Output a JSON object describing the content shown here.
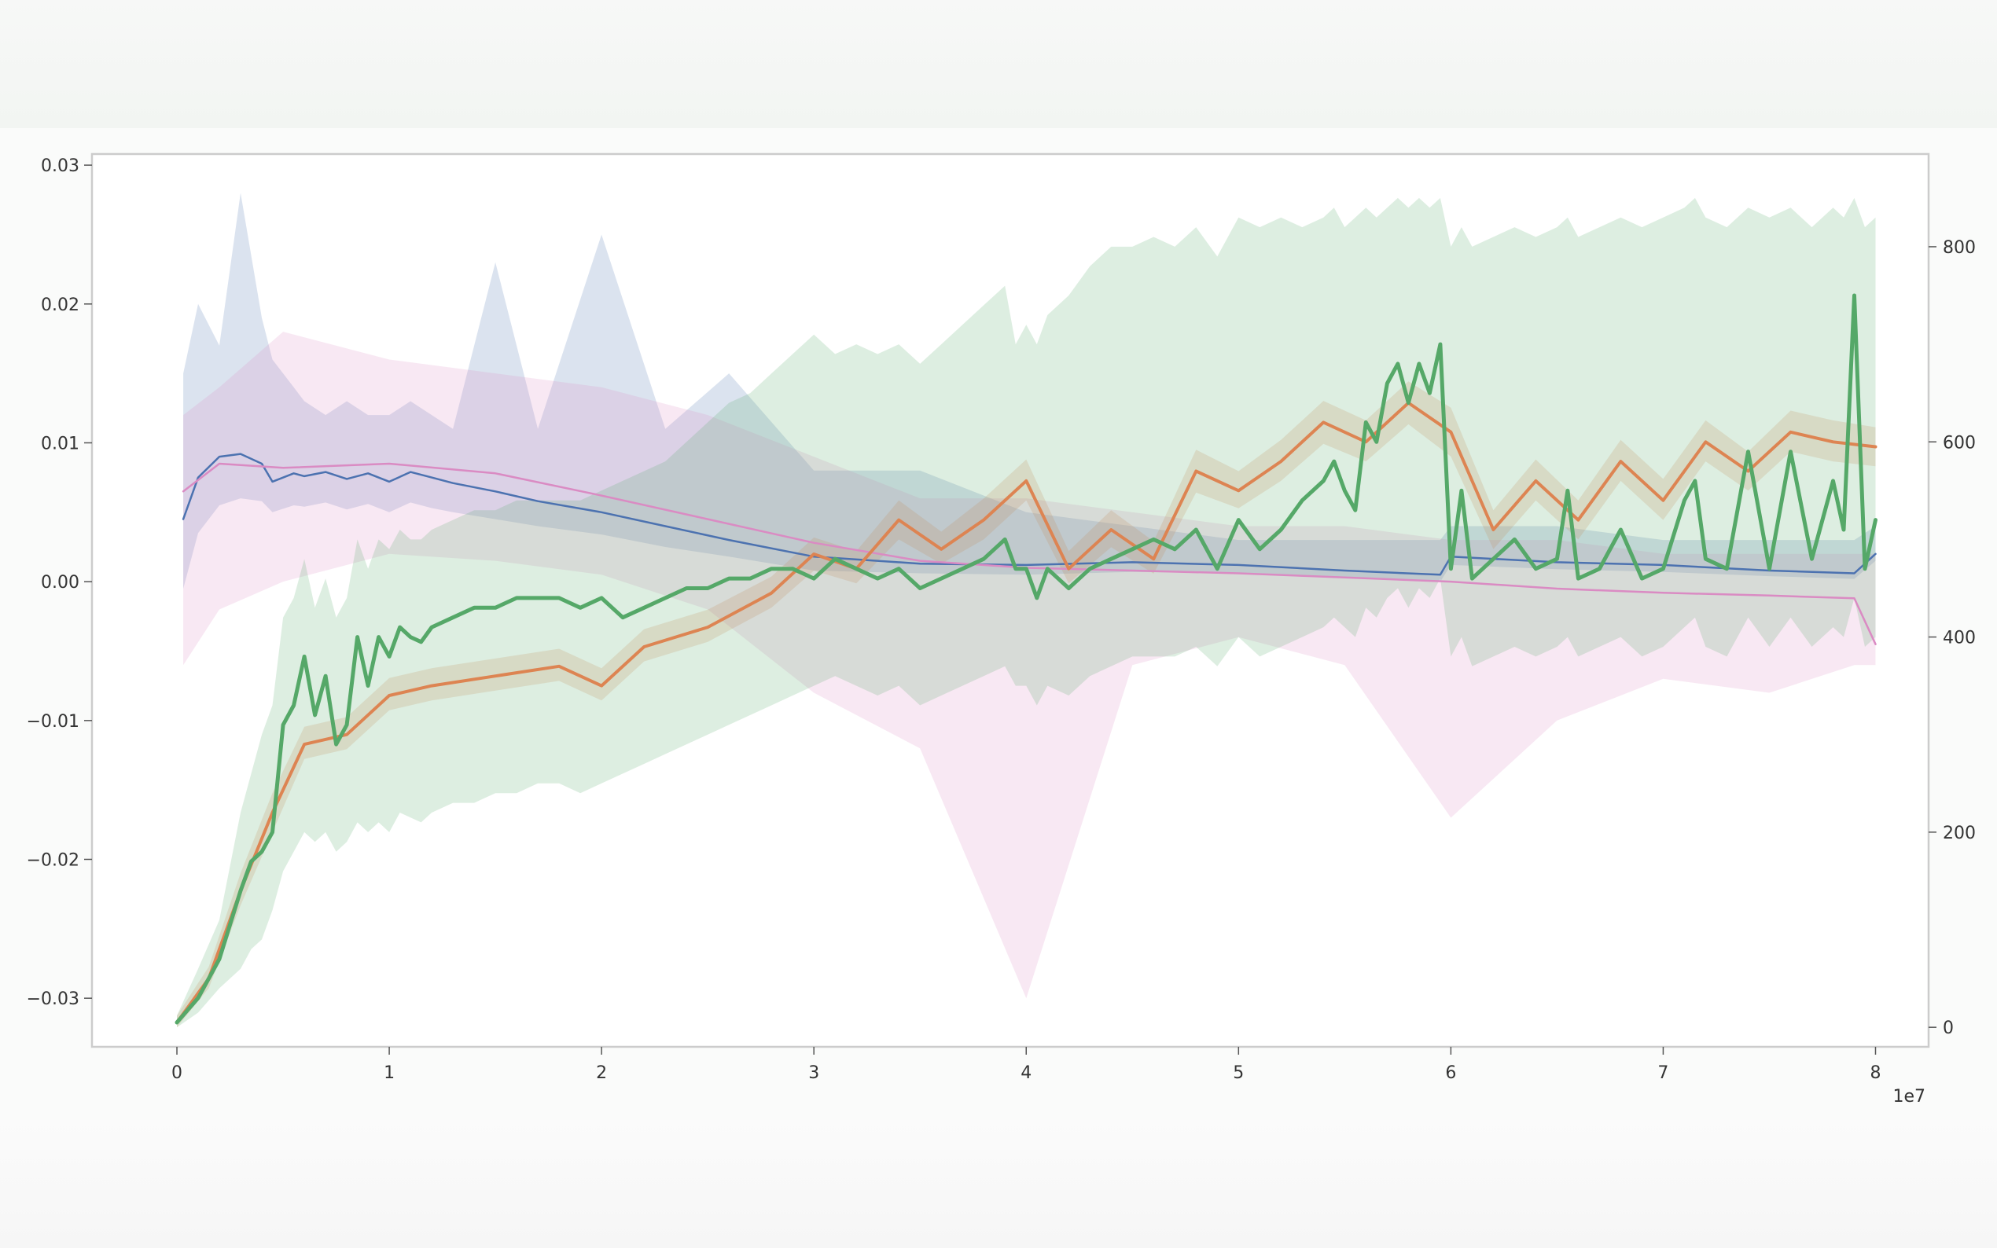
{
  "chart_data": {
    "type": "line",
    "title": "",
    "xlabel": "",
    "x_offset_label": "1e7",
    "xlim": [
      -0.4,
      8.25
    ],
    "x_ticks": [
      "0",
      "1",
      "2",
      "3",
      "4",
      "5",
      "6",
      "7",
      "8"
    ],
    "y_left": {
      "ylim": [
        -0.0335,
        0.0308
      ],
      "ticks": [
        "0.03",
        "0.02",
        "0.01",
        "0.00",
        "−0.01",
        "−0.02",
        "−0.03"
      ]
    },
    "y_right": {
      "ylim": [
        -20,
        895
      ],
      "ticks": [
        "800",
        "600",
        "400",
        "200",
        "0"
      ]
    },
    "grid": false,
    "legend": "none",
    "series": [
      {
        "axis": "left",
        "color": "#4c72b0",
        "x": [
          0.03,
          0.1,
          0.2,
          0.3,
          0.4,
          0.45,
          0.55,
          0.6,
          0.7,
          0.8,
          0.9,
          1.0,
          1.1,
          1.2,
          1.3,
          1.5,
          1.7,
          2.0,
          2.3,
          2.6,
          3.0,
          3.5,
          4.0,
          4.5,
          5.0,
          5.5,
          5.95,
          6.0,
          6.5,
          7.0,
          7.5,
          7.9,
          8.0
        ],
        "y": [
          0.0045,
          0.0075,
          0.009,
          0.0092,
          0.0085,
          0.0072,
          0.0078,
          0.0076,
          0.0079,
          0.0074,
          0.0078,
          0.0072,
          0.0079,
          0.0075,
          0.0071,
          0.0065,
          0.0058,
          0.005,
          0.004,
          0.003,
          0.0018,
          0.0013,
          0.0012,
          0.0014,
          0.0012,
          0.0008,
          0.0005,
          0.0018,
          0.0014,
          0.0012,
          0.0008,
          0.0006,
          0.002
        ],
        "band_low": [
          -0.0005,
          0.0035,
          0.0055,
          0.006,
          0.0058,
          0.005,
          0.0055,
          0.0054,
          0.0057,
          0.0052,
          0.0056,
          0.005,
          0.0057,
          0.0053,
          0.005,
          0.0045,
          0.004,
          0.0034,
          0.0025,
          0.0018,
          0.0008,
          0.0006,
          0.0005,
          0.0007,
          0.0006,
          0.0003,
          0.0,
          0.0012,
          0.0009,
          0.0007,
          0.0004,
          0.0002,
          0.0015
        ],
        "band_high": [
          0.015,
          0.02,
          0.017,
          0.028,
          0.019,
          0.016,
          0.014,
          0.013,
          0.012,
          0.013,
          0.012,
          0.012,
          0.013,
          0.012,
          0.011,
          0.023,
          0.011,
          0.025,
          0.011,
          0.015,
          0.008,
          0.008,
          0.005,
          0.004,
          0.003,
          0.003,
          0.003,
          0.004,
          0.004,
          0.003,
          0.003,
          0.003,
          0.004
        ]
      },
      {
        "axis": "left",
        "color": "#da8bc3",
        "x": [
          0.03,
          0.2,
          0.5,
          1.0,
          1.5,
          2.0,
          2.5,
          3.0,
          3.5,
          4.0,
          4.5,
          5.0,
          5.5,
          6.0,
          6.5,
          7.0,
          7.5,
          7.9,
          8.0
        ],
        "y": [
          0.0065,
          0.0085,
          0.0082,
          0.0085,
          0.0078,
          0.0062,
          0.0045,
          0.0028,
          0.0015,
          0.001,
          0.0008,
          0.0006,
          0.0003,
          0.0,
          -0.0005,
          -0.0008,
          -0.001,
          -0.0012,
          -0.0045
        ],
        "band_low": [
          -0.006,
          -0.002,
          0.0,
          0.002,
          0.0015,
          0.0005,
          -0.002,
          -0.008,
          -0.012,
          -0.03,
          -0.006,
          -0.004,
          -0.006,
          -0.017,
          -0.01,
          -0.007,
          -0.008,
          -0.006,
          -0.006
        ],
        "band_high": [
          0.012,
          0.014,
          0.018,
          0.016,
          0.015,
          0.014,
          0.012,
          0.009,
          0.006,
          0.006,
          0.005,
          0.004,
          0.004,
          0.003,
          0.003,
          0.002,
          0.002,
          0.002,
          0.002
        ]
      },
      {
        "axis": "right",
        "color": "#dd8452",
        "x": [
          0.0,
          0.15,
          0.3,
          0.45,
          0.6,
          0.8,
          1.0,
          1.2,
          1.5,
          1.8,
          2.0,
          2.2,
          2.5,
          2.8,
          3.0,
          3.2,
          3.4,
          3.6,
          3.8,
          4.0,
          4.2,
          4.4,
          4.6,
          4.8,
          5.0,
          5.2,
          5.4,
          5.6,
          5.8,
          6.0,
          6.2,
          6.4,
          6.6,
          6.8,
          7.0,
          7.2,
          7.4,
          7.6,
          7.8,
          8.0
        ],
        "y": [
          5,
          50,
          140,
          220,
          290,
          300,
          340,
          350,
          360,
          370,
          350,
          390,
          410,
          445,
          485,
          470,
          520,
          490,
          520,
          560,
          470,
          510,
          480,
          570,
          550,
          580,
          620,
          600,
          640,
          610,
          510,
          560,
          520,
          580,
          540,
          600,
          570,
          610,
          600,
          595
        ],
        "band_low": [
          0,
          40,
          125,
          200,
          275,
          285,
          325,
          335,
          345,
          355,
          335,
          375,
          395,
          430,
          468,
          455,
          500,
          475,
          500,
          540,
          455,
          492,
          465,
          548,
          532,
          560,
          598,
          580,
          618,
          585,
          490,
          540,
          500,
          560,
          520,
          580,
          550,
          590,
          580,
          575
        ],
        "band_high": [
          12,
          62,
          158,
          240,
          308,
          318,
          358,
          368,
          378,
          388,
          368,
          408,
          428,
          462,
          502,
          488,
          540,
          508,
          542,
          582,
          488,
          530,
          498,
          592,
          570,
          602,
          642,
          622,
          662,
          635,
          530,
          582,
          540,
          602,
          562,
          622,
          590,
          632,
          622,
          615
        ]
      },
      {
        "axis": "right",
        "color": "#55a868",
        "x": [
          0.0,
          0.1,
          0.2,
          0.3,
          0.35,
          0.4,
          0.45,
          0.5,
          0.55,
          0.6,
          0.65,
          0.7,
          0.75,
          0.8,
          0.85,
          0.9,
          0.95,
          1.0,
          1.05,
          1.1,
          1.15,
          1.2,
          1.3,
          1.4,
          1.5,
          1.6,
          1.7,
          1.8,
          1.9,
          2.0,
          2.1,
          2.2,
          2.3,
          2.4,
          2.5,
          2.6,
          2.7,
          2.8,
          2.9,
          3.0,
          3.1,
          3.2,
          3.3,
          3.4,
          3.5,
          3.6,
          3.7,
          3.8,
          3.9,
          3.95,
          4.0,
          4.05,
          4.1,
          4.2,
          4.3,
          4.4,
          4.5,
          4.6,
          4.7,
          4.8,
          4.9,
          5.0,
          5.1,
          5.2,
          5.3,
          5.4,
          5.45,
          5.5,
          5.55,
          5.6,
          5.65,
          5.7,
          5.75,
          5.8,
          5.85,
          5.9,
          5.95,
          6.0,
          6.05,
          6.1,
          6.2,
          6.3,
          6.4,
          6.5,
          6.55,
          6.6,
          6.7,
          6.8,
          6.9,
          7.0,
          7.1,
          7.15,
          7.2,
          7.3,
          7.4,
          7.5,
          7.6,
          7.7,
          7.8,
          7.85,
          7.9,
          7.95,
          8.0
        ],
        "y": [
          5,
          30,
          70,
          140,
          170,
          180,
          200,
          310,
          330,
          380,
          320,
          360,
          290,
          310,
          400,
          350,
          400,
          380,
          410,
          400,
          395,
          410,
          420,
          430,
          430,
          440,
          440,
          440,
          430,
          440,
          420,
          430,
          440,
          450,
          450,
          460,
          460,
          470,
          470,
          460,
          480,
          470,
          460,
          470,
          450,
          460,
          470,
          480,
          500,
          470,
          470,
          440,
          470,
          450,
          470,
          480,
          490,
          500,
          490,
          510,
          470,
          520,
          490,
          510,
          540,
          560,
          580,
          550,
          530,
          620,
          600,
          660,
          680,
          640,
          680,
          650,
          700,
          470,
          550,
          460,
          480,
          500,
          470,
          480,
          550,
          460,
          470,
          510,
          460,
          470,
          540,
          560,
          480,
          470,
          590,
          470,
          590,
          480,
          560,
          510,
          750,
          470,
          520
        ],
        "band_low": [
          0,
          15,
          40,
          60,
          80,
          90,
          120,
          160,
          180,
          200,
          190,
          200,
          180,
          190,
          210,
          200,
          210,
          200,
          220,
          215,
          210,
          220,
          230,
          230,
          240,
          240,
          250,
          250,
          240,
          250,
          260,
          270,
          280,
          290,
          300,
          310,
          320,
          330,
          340,
          350,
          360,
          350,
          340,
          350,
          330,
          340,
          350,
          360,
          370,
          350,
          350,
          330,
          350,
          340,
          360,
          370,
          380,
          380,
          380,
          390,
          370,
          400,
          380,
          390,
          400,
          410,
          420,
          410,
          400,
          430,
          420,
          440,
          450,
          430,
          450,
          440,
          460,
          380,
          400,
          370,
          380,
          390,
          380,
          390,
          400,
          380,
          390,
          400,
          380,
          390,
          410,
          420,
          390,
          380,
          420,
          390,
          420,
          390,
          410,
          400,
          440,
          390,
          400
        ],
        "band_high": [
          12,
          60,
          110,
          220,
          260,
          300,
          330,
          420,
          440,
          480,
          430,
          460,
          420,
          440,
          500,
          470,
          500,
          490,
          510,
          500,
          500,
          510,
          520,
          530,
          530,
          540,
          540,
          540,
          540,
          550,
          560,
          570,
          580,
          600,
          620,
          640,
          650,
          670,
          690,
          710,
          690,
          700,
          690,
          700,
          680,
          700,
          720,
          740,
          760,
          700,
          720,
          700,
          730,
          750,
          780,
          800,
          800,
          810,
          800,
          820,
          790,
          830,
          820,
          830,
          820,
          830,
          840,
          820,
          830,
          840,
          830,
          840,
          850,
          840,
          850,
          840,
          850,
          800,
          820,
          800,
          810,
          820,
          810,
          820,
          830,
          810,
          820,
          830,
          820,
          830,
          840,
          850,
          830,
          820,
          840,
          830,
          840,
          820,
          840,
          830,
          850,
          820,
          830
        ]
      }
    ]
  }
}
